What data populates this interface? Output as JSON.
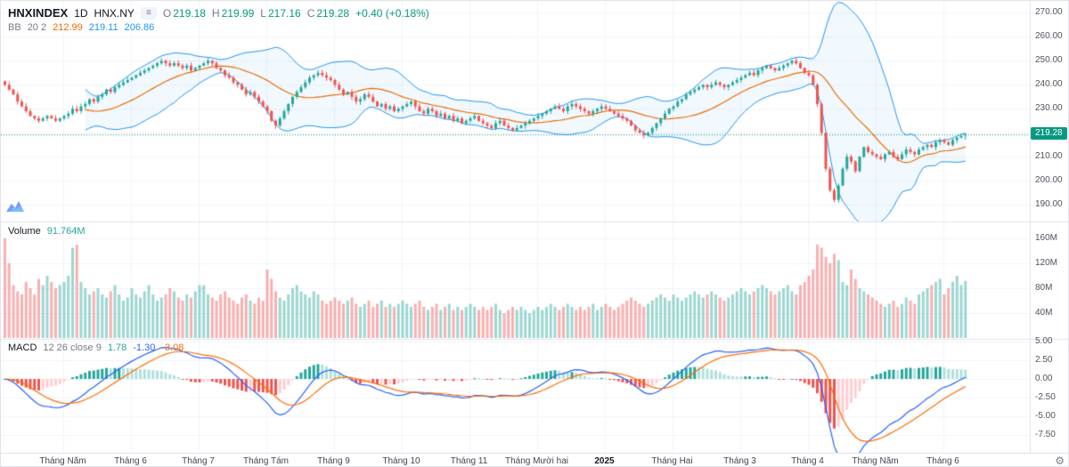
{
  "header": {
    "symbol": "HNXINDEX",
    "interval": "1D",
    "exchange": "HNX.NY",
    "menu_chip": "≡",
    "ohlc": {
      "o_label": "O",
      "o": "219.18",
      "h_label": "H",
      "h": "219.99",
      "l_label": "L",
      "l": "217.16",
      "c_label": "C",
      "c": "219.28",
      "change": "+0.40 (+0.18%)"
    },
    "bb": {
      "label": "BB",
      "params": "20 2",
      "basis": "212.99",
      "upper": "219.11",
      "lower": "206.86"
    }
  },
  "volume_pane": {
    "label": "Volume",
    "value": "91.764M"
  },
  "macd_pane": {
    "label": "MACD",
    "params": "12 26 close 9",
    "hist": "1.78",
    "macd": "-1.30",
    "signal": "-3.08"
  },
  "price_tag": "219.28",
  "gear_glyph": "⚙",
  "axes": {
    "price": [
      {
        "text": "270.00",
        "v": 270
      },
      {
        "text": "260.00",
        "v": 260
      },
      {
        "text": "250.00",
        "v": 250
      },
      {
        "text": "240.00",
        "v": 240
      },
      {
        "text": "230.00",
        "v": 230
      },
      {
        "text": "220.00",
        "v": 220
      },
      {
        "text": "210.00",
        "v": 210
      },
      {
        "text": "200.00",
        "v": 200
      },
      {
        "text": "190.00",
        "v": 190
      }
    ],
    "volume": [
      {
        "text": "160M",
        "v": 160
      },
      {
        "text": "120M",
        "v": 120
      },
      {
        "text": "80M",
        "v": 80
      },
      {
        "text": "40M",
        "v": 40
      }
    ],
    "macd": [
      {
        "text": "5.00",
        "v": 5
      },
      {
        "text": "2.50",
        "v": 2.5
      },
      {
        "text": "0.00",
        "v": 0
      },
      {
        "text": "-2.50",
        "v": -2.5
      },
      {
        "text": "-5.00",
        "v": -5
      },
      {
        "text": "-7.50",
        "v": -7.5
      }
    ]
  },
  "colors": {
    "up": "#26a69a",
    "down": "#ef5350",
    "bb_band": "#2196f3",
    "bb_fill": "rgba(33,150,243,0.06)",
    "bb_basis": "#ef6c00",
    "macd_line": "#2962ff",
    "signal_line": "#ff6d00",
    "hist_up": "#26a69a",
    "hist_up_weak": "#b2dfdb",
    "hist_down": "#ef5350",
    "hist_down_weak": "#ffcdd2",
    "vol_up": "rgba(38,166,154,0.45)",
    "vol_down": "rgba(239,83,80,0.45)",
    "grid": "#f0f3fa",
    "axis_border": "#e0e3eb",
    "price_line": "#089981",
    "price_tag_bg": "#089981"
  },
  "chart_data": {
    "type": "candlestick",
    "title": "HNXINDEX 1D HNX.NY",
    "grid": true,
    "legend_position": "top-left",
    "price_axis_range": [
      183,
      275
    ],
    "volume_axis_max_m": 187,
    "macd_axis_range": [
      -9.9,
      5.4
    ],
    "last_candle": {
      "o": 219.18,
      "h": 219.99,
      "l": 217.16,
      "c": 219.28
    },
    "last_volume_m": 91.764,
    "indicators": {
      "bollinger": {
        "length": 20,
        "mult": 2
      },
      "macd": {
        "fast": 12,
        "slow": 26,
        "signal": 9
      }
    },
    "x_month_labels": [
      {
        "label": "Tháng Năm",
        "i": 14
      },
      {
        "label": "Tháng 6",
        "i": 30
      },
      {
        "label": "Tháng 7",
        "i": 46
      },
      {
        "label": "Tháng Tám",
        "i": 62
      },
      {
        "label": "Tháng 9",
        "i": 78
      },
      {
        "label": "Tháng 10",
        "i": 94
      },
      {
        "label": "Tháng 11",
        "i": 110
      },
      {
        "label": "Tháng Mười hai",
        "i": 126
      },
      {
        "label": "2025",
        "i": 142,
        "bold": true
      },
      {
        "label": "Tháng Hai",
        "i": 158
      },
      {
        "label": "Tháng 3",
        "i": 174
      },
      {
        "label": "Tháng 4",
        "i": 190
      },
      {
        "label": "Tháng Năm",
        "i": 206
      },
      {
        "label": "Tháng 6",
        "i": 222
      }
    ],
    "series": [
      {
        "name": "close",
        "values": [
          240,
          238,
          236,
          233,
          231,
          229,
          227,
          226,
          225,
          226,
          227,
          226,
          225,
          226,
          227,
          228,
          230,
          229,
          231,
          232,
          234,
          233,
          235,
          236,
          238,
          237,
          239,
          240,
          241,
          242,
          243,
          244,
          245,
          246,
          247,
          248,
          249,
          250,
          249,
          248,
          249,
          248,
          247,
          248,
          246,
          247,
          248,
          249,
          250,
          249,
          247,
          246,
          244,
          243,
          241,
          240,
          238,
          236,
          237,
          235,
          233,
          231,
          229,
          225,
          223,
          226,
          229,
          232,
          235,
          237,
          239,
          241,
          243,
          244,
          245,
          244,
          243,
          242,
          240,
          238,
          236,
          237,
          235,
          233,
          234,
          236,
          235,
          233,
          231,
          232,
          230,
          231,
          229,
          230,
          231,
          232,
          233,
          231,
          229,
          228,
          230,
          229,
          227,
          228,
          226,
          227,
          225,
          226,
          224,
          225,
          226,
          227,
          225,
          224,
          223,
          222,
          224,
          225,
          223,
          222,
          221,
          222,
          223,
          224,
          225,
          226,
          227,
          228,
          229,
          230,
          231,
          230,
          229,
          231,
          232,
          231,
          230,
          229,
          228,
          229,
          230,
          231,
          230,
          229,
          228,
          227,
          226,
          225,
          223,
          221,
          220,
          219,
          220,
          222,
          224,
          226,
          228,
          230,
          231,
          233,
          234,
          236,
          237,
          238,
          239,
          240,
          239,
          240,
          241,
          240,
          239,
          240,
          241,
          242,
          243,
          244,
          245,
          244,
          246,
          247,
          248,
          247,
          246,
          247,
          248,
          249,
          250,
          249,
          247,
          245,
          244,
          240,
          232,
          220,
          205,
          196,
          192,
          198,
          205,
          210,
          208,
          204,
          210,
          214,
          212,
          211,
          210,
          209,
          211,
          212,
          210,
          209,
          211,
          213,
          212,
          211,
          213,
          214,
          215,
          214,
          216,
          217,
          216,
          215,
          217,
          218,
          218.6,
          219.28
        ]
      },
      {
        "name": "volume_m",
        "values": [
          160,
          120,
          85,
          75,
          70,
          90,
          80,
          70,
          95,
          85,
          100,
          90,
          80,
          85,
          90,
          100,
          145,
          150,
          90,
          80,
          70,
          75,
          80,
          70,
          65,
          75,
          85,
          70,
          60,
          65,
          80,
          70,
          65,
          75,
          85,
          70,
          60,
          65,
          70,
          80,
          75,
          65,
          60,
          70,
          65,
          75,
          85,
          85,
          70,
          65,
          60,
          70,
          75,
          65,
          60,
          55,
          65,
          70,
          60,
          55,
          65,
          60,
          110,
          95,
          75,
          65,
          60,
          70,
          80,
          85,
          75,
          70,
          65,
          75,
          70,
          60,
          55,
          60,
          65,
          60,
          55,
          60,
          65,
          55,
          50,
          55,
          60,
          50,
          55,
          60,
          50,
          55,
          50,
          55,
          60,
          55,
          50,
          55,
          60,
          50,
          45,
          50,
          55,
          45,
          50,
          55,
          45,
          50,
          45,
          50,
          55,
          50,
          45,
          50,
          45,
          50,
          55,
          45,
          40,
          45,
          50,
          45,
          50,
          45,
          40,
          45,
          50,
          45,
          50,
          55,
          50,
          45,
          50,
          55,
          50,
          45,
          50,
          45,
          50,
          55,
          45,
          50,
          55,
          50,
          45,
          50,
          55,
          60,
          65,
          60,
          55,
          50,
          55,
          60,
          65,
          70,
          65,
          60,
          70,
          65,
          60,
          65,
          70,
          75,
          70,
          65,
          70,
          75,
          70,
          65,
          60,
          65,
          70,
          75,
          80,
          75,
          70,
          75,
          80,
          85,
          80,
          75,
          70,
          75,
          80,
          85,
          75,
          70,
          85,
          90,
          100,
          110,
          150,
          145,
          130,
          120,
          135,
          125,
          90,
          85,
          110,
          95,
          80,
          75,
          70,
          65,
          60,
          55,
          50,
          55,
          60,
          50,
          55,
          65,
          60,
          55,
          70,
          75,
          80,
          85,
          90,
          95,
          70,
          80,
          90,
          100,
          85,
          91.764
        ]
      }
    ]
  }
}
